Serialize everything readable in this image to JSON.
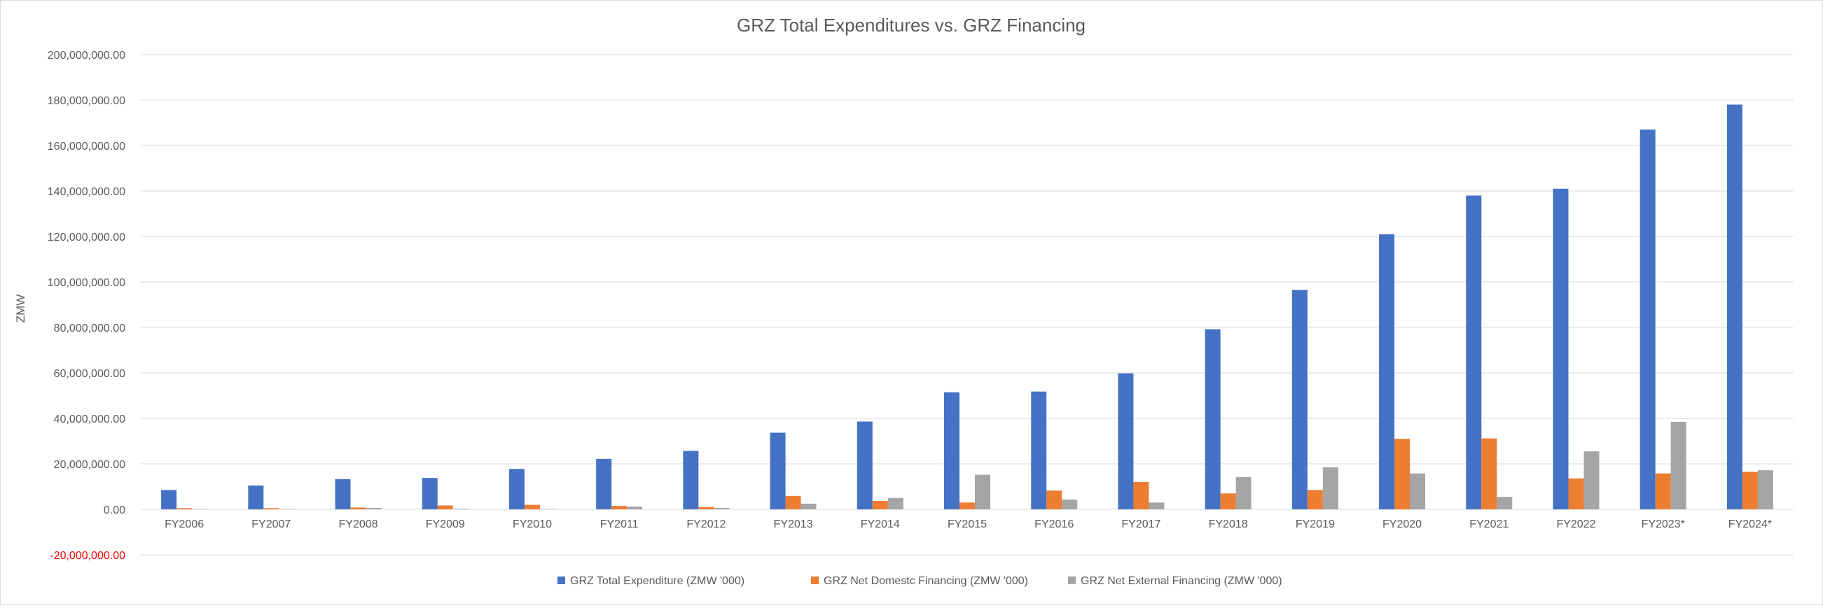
{
  "chart_data": {
    "type": "bar",
    "title": "GRZ Total Expenditures vs. GRZ Financing",
    "xlabel": "",
    "ylabel": "ZMW",
    "ylim": [
      -20000000,
      200000000
    ],
    "yticks": [
      -20000000,
      0,
      20000000,
      40000000,
      60000000,
      80000000,
      100000000,
      120000000,
      140000000,
      160000000,
      180000000,
      200000000
    ],
    "ytick_labels": [
      "-20,000,000.00",
      "0.00",
      "20,000,000.00",
      "40,000,000.00",
      "60,000,000.00",
      "80,000,000.00",
      "100,000,000.00",
      "120,000,000.00",
      "140,000,000.00",
      "160,000,000.00",
      "180,000,000.00",
      "200,000,000.00"
    ],
    "grid": true,
    "legend_position": "bottom",
    "categories": [
      "FY2006",
      "FY2007",
      "FY2008",
      "FY2009",
      "FY2010",
      "FY2011",
      "FY2012",
      "FY2013",
      "FY2014",
      "FY2015",
      "FY2016",
      "FY2017",
      "FY2018",
      "FY2019",
      "FY2020",
      "FY2021",
      "FY2022",
      "FY2023*",
      "FY2024*"
    ],
    "series": [
      {
        "name": "GRZ Total Expenditure (ZMW '000)",
        "color": "#4472c4",
        "values": [
          8500000,
          10500000,
          13300000,
          13800000,
          17800000,
          22200000,
          25700000,
          33700000,
          38600000,
          51500000,
          51800000,
          59800000,
          79200000,
          96500000,
          121000000,
          138000000,
          141000000,
          167000000,
          178000000
        ]
      },
      {
        "name": "GRZ Net Domestc Financing (ZMW '000)",
        "color": "#ed7d31",
        "values": [
          500000,
          500000,
          800000,
          1700000,
          2000000,
          1500000,
          1000000,
          5900000,
          3700000,
          3000000,
          8300000,
          12000000,
          7000000,
          8500000,
          31000000,
          31200000,
          13600000,
          15800000,
          16500000
        ]
      },
      {
        "name": "GRZ Net External Financing (ZMW '000)",
        "color": "#a5a5a5",
        "values": [
          200000,
          200000,
          600000,
          300000,
          200000,
          1200000,
          600000,
          2500000,
          5000000,
          15200000,
          4300000,
          3000000,
          14200000,
          18500000,
          15800000,
          5500000,
          25500000,
          38500000,
          17200000
        ]
      }
    ]
  }
}
